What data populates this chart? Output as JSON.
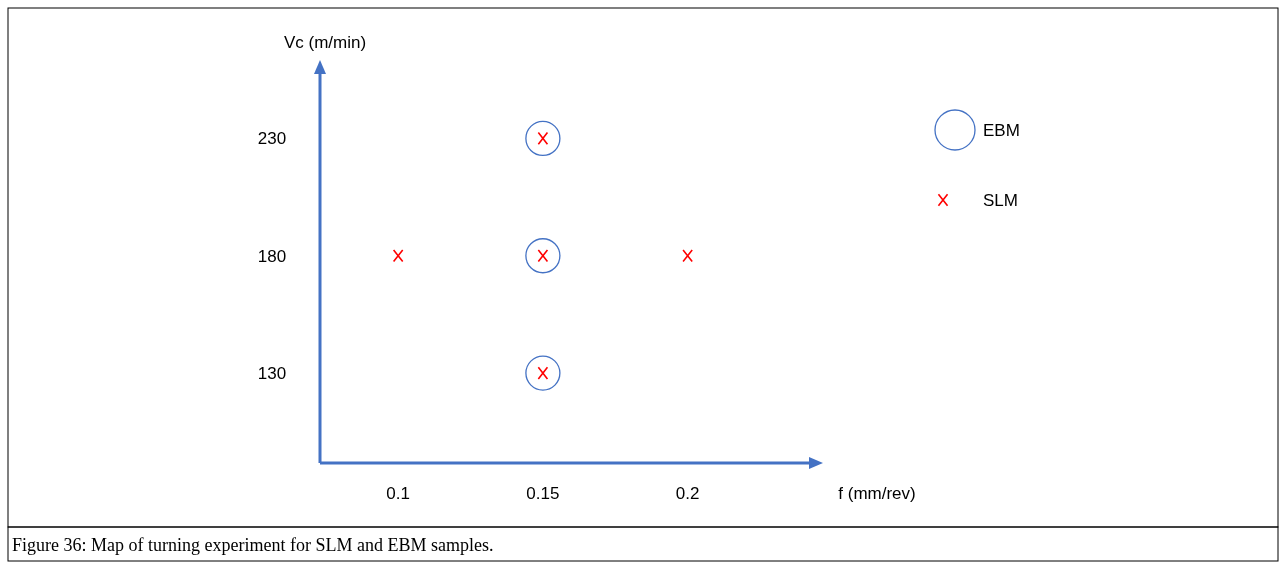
{
  "chart_data": {
    "type": "scatter",
    "xlabel": "f (mm/rev)",
    "ylabel": "Vc (m/min)",
    "xlim": [
      0.073,
      0.244
    ],
    "ylim": [
      91.7,
      260
    ],
    "xticks": [
      0.1,
      0.15,
      0.2
    ],
    "yticks": [
      130,
      180,
      230
    ],
    "grid": false,
    "legend": "top right",
    "series": [
      {
        "name": "EBM",
        "color": "#4472c4",
        "marker": "circle",
        "x": [
          0.15,
          0.15,
          0.15
        ],
        "values": [
          230,
          180,
          130
        ]
      },
      {
        "name": "SLM",
        "color": "#ff0000",
        "marker": "cross",
        "x": [
          0.1,
          0.15,
          0.15,
          0.2,
          0.15
        ],
        "values": [
          180,
          230,
          180,
          180,
          130
        ]
      }
    ],
    "annotations": [
      "Figure 36: Map of turning experiment for SLM and EBM samples."
    ]
  }
}
